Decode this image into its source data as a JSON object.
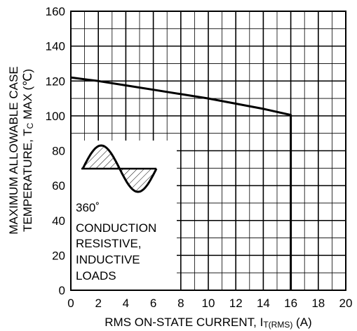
{
  "chart_data": {
    "type": "line",
    "xlabel": {
      "main": "RMS ON-STATE CURRENT, I",
      "sub": "T(RMS)",
      "unit": " (A)"
    },
    "ylabel": {
      "line1": "MAXIMUM ALLOWABLE CASE",
      "line2_main": "TEMPERATURE, T",
      "line2_sub": "C",
      "line2_rest": " MAX (℃)"
    },
    "xlim": [
      0,
      20
    ],
    "ylim": [
      0,
      160
    ],
    "xticks": [
      "0",
      "2",
      "4",
      "6",
      "8",
      "10",
      "12",
      "14",
      "16",
      "18",
      "20"
    ],
    "yticks": [
      "0",
      "20",
      "40",
      "60",
      "80",
      "100",
      "120",
      "140",
      "160"
    ],
    "grid": true,
    "series": [
      {
        "x": [
          0,
          2,
          4,
          6,
          8,
          10,
          12,
          14,
          16,
          16
        ],
        "y": [
          122,
          120,
          117.5,
          115,
          112.5,
          110,
          107,
          104,
          100.5,
          0
        ]
      }
    ],
    "annotation": {
      "degree_line": "360˚",
      "lines": [
        "CONDUCTION",
        "RESISTIVE,",
        "INDUCTIVE",
        "LOADS"
      ]
    }
  }
}
